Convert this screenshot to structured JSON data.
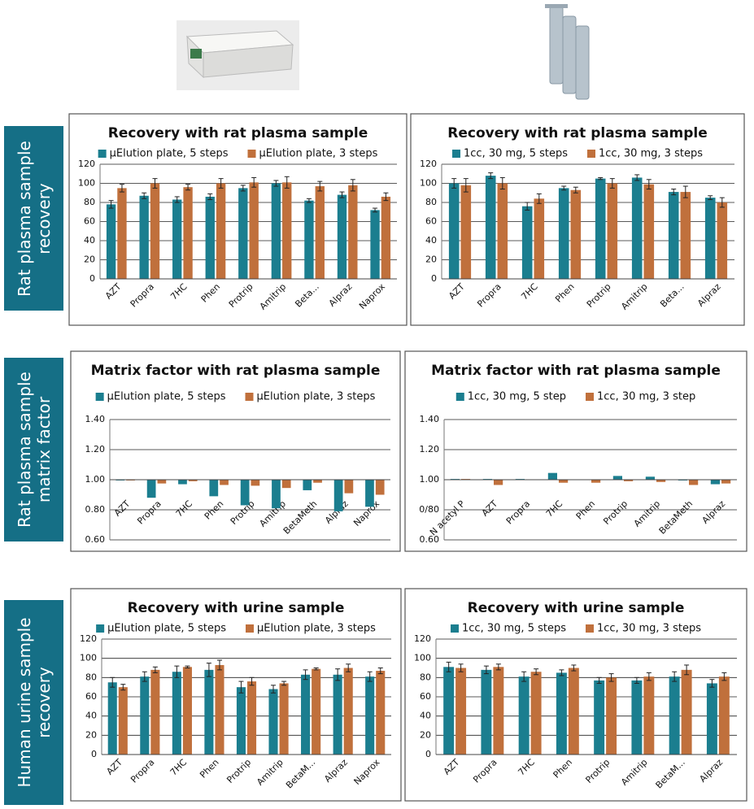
{
  "row_labels": [
    "Rat plasma sample recovery",
    "Rat plasma sample matrix factor",
    "Human urine sample recovery"
  ],
  "chart_data": [
    {
      "type": "bar",
      "title": "Recovery with rat plasma sample",
      "categories": [
        "AZT",
        "Propra",
        "7HC",
        "Phen",
        "Protrip",
        "Amitrip",
        "Beta...",
        "Alpraz",
        "Naprox"
      ],
      "series": [
        {
          "name": "µElution plate, 5 steps",
          "color": "#1b7e8f",
          "values": [
            78,
            87,
            83,
            86,
            95,
            100,
            82,
            88,
            72
          ],
          "errors": [
            4,
            3,
            3,
            3,
            3,
            3,
            2,
            3,
            2
          ]
        },
        {
          "name": "µElution plate, 3 steps",
          "color": "#c0703c",
          "values": [
            95,
            100,
            96,
            100,
            101,
            101,
            97,
            98,
            86
          ],
          "errors": [
            4,
            5,
            3,
            5,
            5,
            6,
            5,
            6,
            4
          ]
        }
      ],
      "ylim": [
        0,
        120
      ],
      "yticks": [
        0,
        20,
        40,
        60,
        80,
        100,
        120
      ],
      "grid": true
    },
    {
      "type": "bar",
      "title": "Recovery with rat plasma sample",
      "categories": [
        "AZT",
        "Propra",
        "7HC",
        "Phen",
        "Protrip",
        "Amitrip",
        "Beta...",
        "Alpraz"
      ],
      "series": [
        {
          "name": "1cc, 30 mg, 5 steps",
          "color": "#1b7e8f",
          "values": [
            100,
            108,
            76,
            95,
            105,
            106,
            91,
            85
          ],
          "errors": [
            5,
            3,
            4,
            2,
            1,
            3,
            3,
            2
          ]
        },
        {
          "name": "1cc, 30 mg, 3 steps",
          "color": "#c0703c",
          "values": [
            98,
            100,
            84,
            93,
            100,
            99,
            91,
            80
          ],
          "errors": [
            7,
            6,
            5,
            3,
            5,
            5,
            6,
            5
          ]
        }
      ],
      "ylim": [
        0,
        120
      ],
      "yticks": [
        0,
        20,
        40,
        60,
        80,
        100,
        120
      ],
      "grid": true
    },
    {
      "type": "bar",
      "title": "Matrix factor with rat plasma sample",
      "categories": [
        "AZT",
        "Propra",
        "7HC",
        "Phen",
        "Protrip",
        "Amitrip",
        "BetaMeth",
        "Alpraz",
        "Naprox"
      ],
      "series": [
        {
          "name": "µElution plate, 5 steps",
          "color": "#1b7e8f",
          "values": [
            0.995,
            0.88,
            0.97,
            0.89,
            0.83,
            0.81,
            0.93,
            0.79,
            0.82
          ]
        },
        {
          "name": "µElution plate, 3 steps",
          "color": "#c0703c",
          "values": [
            0.995,
            0.975,
            0.99,
            0.965,
            0.96,
            0.945,
            0.98,
            0.91,
            0.9
          ]
        }
      ],
      "ylim": [
        0.6,
        1.4
      ],
      "yticks": [
        {
          "value": 0.6,
          "label": "0.60"
        },
        {
          "value": 0.8,
          "label": "0.80"
        },
        {
          "value": 1.0,
          "label": "1.00"
        },
        {
          "value": 1.2,
          "label": "1.20"
        },
        {
          "value": 1.4,
          "label": "1.40"
        }
      ],
      "baseline": 1,
      "grid": true
    },
    {
      "type": "bar",
      "title": "Matrix factor with rat plasma sample",
      "categories": [
        "N acetyl P",
        "AZT",
        "Propra",
        "7HC",
        "Phen",
        "Protrip",
        "Amitrip",
        "BetaMeth",
        "Alpraz"
      ],
      "series": [
        {
          "name": "1cc, 30 mg, 5 step",
          "color": "#1b7e8f",
          "values": [
            1.005,
            1.005,
            1.005,
            1.045,
            1.0,
            1.025,
            1.02,
            0.995,
            0.97
          ]
        },
        {
          "name": "1cc, 30 mg, 3 step",
          "color": "#c0703c",
          "values": [
            1.005,
            0.965,
            1.0,
            0.98,
            0.98,
            0.99,
            0.985,
            0.965,
            0.975
          ]
        }
      ],
      "ylim": [
        0.6,
        1.4
      ],
      "yticks": [
        {
          "value": 0.6,
          "label": "0.60"
        },
        {
          "value": 0.8,
          "label": "0/80"
        },
        {
          "value": 1.0,
          "label": "1.00"
        },
        {
          "value": 1.2,
          "label": "1.20"
        },
        {
          "value": 1.4,
          "label": "1.40"
        }
      ],
      "baseline": 1,
      "grid": true
    },
    {
      "type": "bar",
      "title": "Recovery with urine sample",
      "categories": [
        "AZT",
        "Propra",
        "7HC",
        "Phen",
        "Protrip",
        "Amitrip",
        "BetaM...",
        "Alpraz",
        "Naprox"
      ],
      "series": [
        {
          "name": "µElution plate, 5 steps",
          "color": "#1b7e8f",
          "values": [
            75,
            81,
            86,
            88,
            70,
            68,
            83,
            83,
            81
          ],
          "errors": [
            5,
            5,
            6,
            7,
            6,
            4,
            5,
            6,
            5
          ]
        },
        {
          "name": "µElution plate, 3 steps",
          "color": "#c0703c",
          "values": [
            70,
            88,
            91,
            93,
            76,
            74,
            89,
            90,
            87
          ],
          "errors": [
            3,
            3,
            1,
            5,
            4,
            2,
            1,
            4,
            3
          ]
        }
      ],
      "ylim": [
        0,
        120
      ],
      "yticks": [
        0,
        20,
        40,
        60,
        80,
        100,
        120
      ],
      "grid": true
    },
    {
      "type": "bar",
      "title": "Recovery with urine sample",
      "categories": [
        "AZT",
        "Propra",
        "7HC",
        "Phen",
        "Protrip",
        "Amitrip",
        "BetaM...",
        "Alpraz"
      ],
      "series": [
        {
          "name": "1cc, 30 mg, 5 steps",
          "color": "#1b7e8f",
          "values": [
            91,
            88,
            81,
            85,
            77,
            77,
            81,
            74
          ],
          "errors": [
            5,
            4,
            5,
            3,
            3,
            3,
            5,
            4
          ]
        },
        {
          "name": "1cc, 30 mg, 3 steps",
          "color": "#c0703c",
          "values": [
            90,
            91,
            86,
            90,
            80,
            81,
            88,
            81
          ],
          "errors": [
            4,
            3,
            3,
            3,
            4,
            4,
            5,
            4
          ]
        }
      ],
      "ylim": [
        0,
        120
      ],
      "yticks": [
        0,
        20,
        40,
        60,
        80,
        100,
        120
      ],
      "grid": true
    }
  ]
}
